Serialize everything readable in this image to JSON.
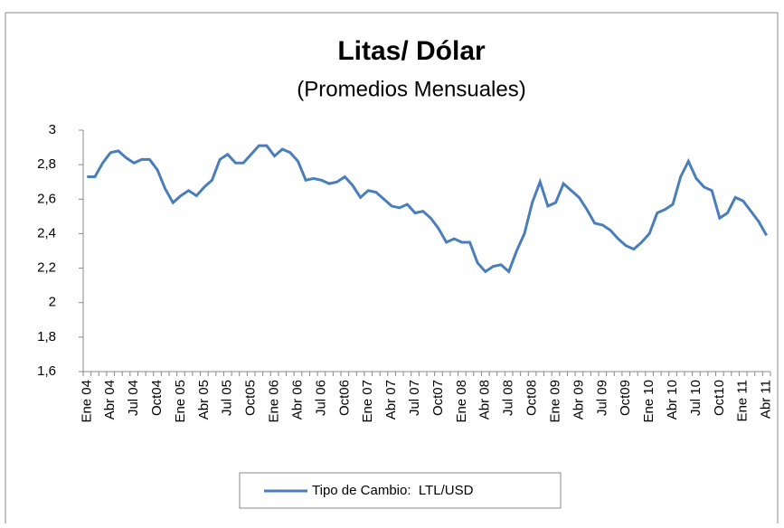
{
  "chart_data": {
    "type": "line",
    "title": "Litas/ Dólar",
    "subtitle": "(Promedios Mensuales)",
    "categories": [
      "Ene 04",
      null,
      null,
      "Abr 04",
      null,
      null,
      "Jul 04",
      null,
      null,
      "Oct04",
      null,
      null,
      "Ene 05",
      null,
      null,
      "Abr 05",
      null,
      null,
      "Jul 05",
      null,
      null,
      "Oct05",
      null,
      null,
      "Ene 06",
      null,
      null,
      "Abr 06",
      null,
      null,
      "Jul 06",
      null,
      null,
      "Oct06",
      null,
      null,
      "Ene 07",
      null,
      null,
      "Abr 07",
      null,
      null,
      "Jul 07",
      null,
      null,
      "Oct07",
      null,
      null,
      "Ene 08",
      null,
      null,
      "Abr 08",
      null,
      null,
      "Jul 08",
      null,
      null,
      "Oct08",
      null,
      null,
      "Ene 09",
      null,
      null,
      "Abr 09",
      null,
      null,
      "Jul 09",
      null,
      null,
      "Oct09",
      null,
      null,
      "Ene 10",
      null,
      null,
      "Abr 10",
      null,
      null,
      "Jul 10",
      null,
      null,
      "Oct10",
      null,
      null,
      "Ene 11",
      null,
      null,
      "Abr 11"
    ],
    "series": [
      {
        "name": "Tipo de Cambio:  LTL/USD",
        "color": "#4a7ebb",
        "values": [
          2.73,
          2.73,
          2.81,
          2.87,
          2.88,
          2.84,
          2.81,
          2.83,
          2.83,
          2.77,
          2.66,
          2.58,
          2.62,
          2.65,
          2.62,
          2.67,
          2.71,
          2.83,
          2.86,
          2.81,
          2.81,
          2.86,
          2.91,
          2.91,
          2.85,
          2.89,
          2.87,
          2.82,
          2.71,
          2.72,
          2.71,
          2.69,
          2.7,
          2.73,
          2.68,
          2.61,
          2.65,
          2.64,
          2.6,
          2.56,
          2.55,
          2.57,
          2.52,
          2.53,
          2.49,
          2.43,
          2.35,
          2.37,
          2.35,
          2.35,
          2.23,
          2.18,
          2.21,
          2.22,
          2.18,
          2.3,
          2.4,
          2.58,
          2.7,
          2.56,
          2.58,
          2.69,
          2.65,
          2.61,
          2.54,
          2.46,
          2.45,
          2.42,
          2.37,
          2.33,
          2.31,
          2.35,
          2.4,
          2.52,
          2.54,
          2.57,
          2.73,
          2.82,
          2.72,
          2.67,
          2.65,
          2.49,
          2.52,
          2.61,
          2.59,
          2.53,
          2.47,
          2.39
        ]
      }
    ],
    "ylim": [
      1.6,
      3
    ],
    "yticks": [
      {
        "value": 1.6,
        "label": "1,6"
      },
      {
        "value": 1.8,
        "label": "1,8"
      },
      2,
      {
        "value": 2.2,
        "label": "2,2"
      },
      {
        "value": 2.4,
        "label": "2,4"
      },
      {
        "value": 2.6,
        "label": "2,6"
      },
      {
        "value": 2.8,
        "label": "2,8"
      },
      3
    ],
    "legend": "bottom"
  }
}
